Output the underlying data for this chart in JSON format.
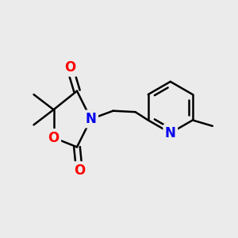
{
  "bg_color": "#ebebeb",
  "atom_colors": {
    "O": "#ff0000",
    "N": "#0000ee",
    "C": "#000000"
  },
  "bond_color": "#000000",
  "bond_width": 1.8,
  "font_size_atoms": 12,
  "fig_w": 3.0,
  "fig_h": 3.0,
  "dpi": 100,
  "xlim": [
    0,
    10
  ],
  "ylim": [
    0,
    10
  ]
}
